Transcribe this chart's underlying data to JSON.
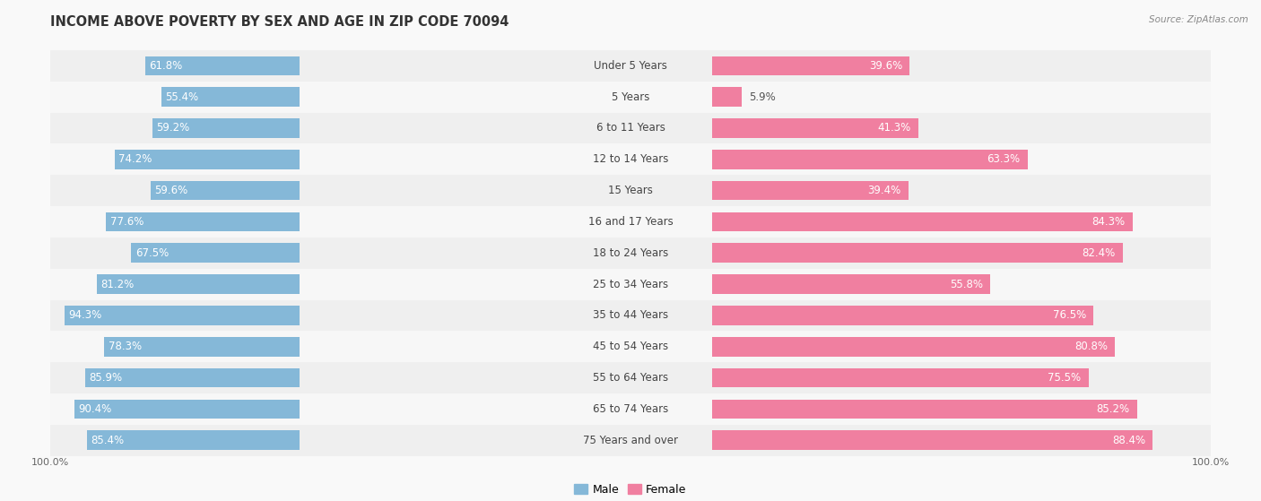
{
  "title": "INCOME ABOVE POVERTY BY SEX AND AGE IN ZIP CODE 70094",
  "source": "Source: ZipAtlas.com",
  "categories": [
    "Under 5 Years",
    "5 Years",
    "6 to 11 Years",
    "12 to 14 Years",
    "15 Years",
    "16 and 17 Years",
    "18 to 24 Years",
    "25 to 34 Years",
    "35 to 44 Years",
    "45 to 54 Years",
    "55 to 64 Years",
    "65 to 74 Years",
    "75 Years and over"
  ],
  "male_values": [
    61.8,
    55.4,
    59.2,
    74.2,
    59.6,
    77.6,
    67.5,
    81.2,
    94.3,
    78.3,
    85.9,
    90.4,
    85.4
  ],
  "female_values": [
    39.6,
    5.9,
    41.3,
    63.3,
    39.4,
    84.3,
    82.4,
    55.8,
    76.5,
    80.8,
    75.5,
    85.2,
    88.4
  ],
  "male_color": "#85b8d8",
  "female_color": "#f07fa0",
  "male_label": "Male",
  "female_label": "Female",
  "title_fontsize": 10.5,
  "label_fontsize": 8.5,
  "value_fontsize": 8.5,
  "axis_max": 100.0,
  "row_colors": [
    "#efefef",
    "#f7f7f7"
  ],
  "inside_text_threshold": 15
}
